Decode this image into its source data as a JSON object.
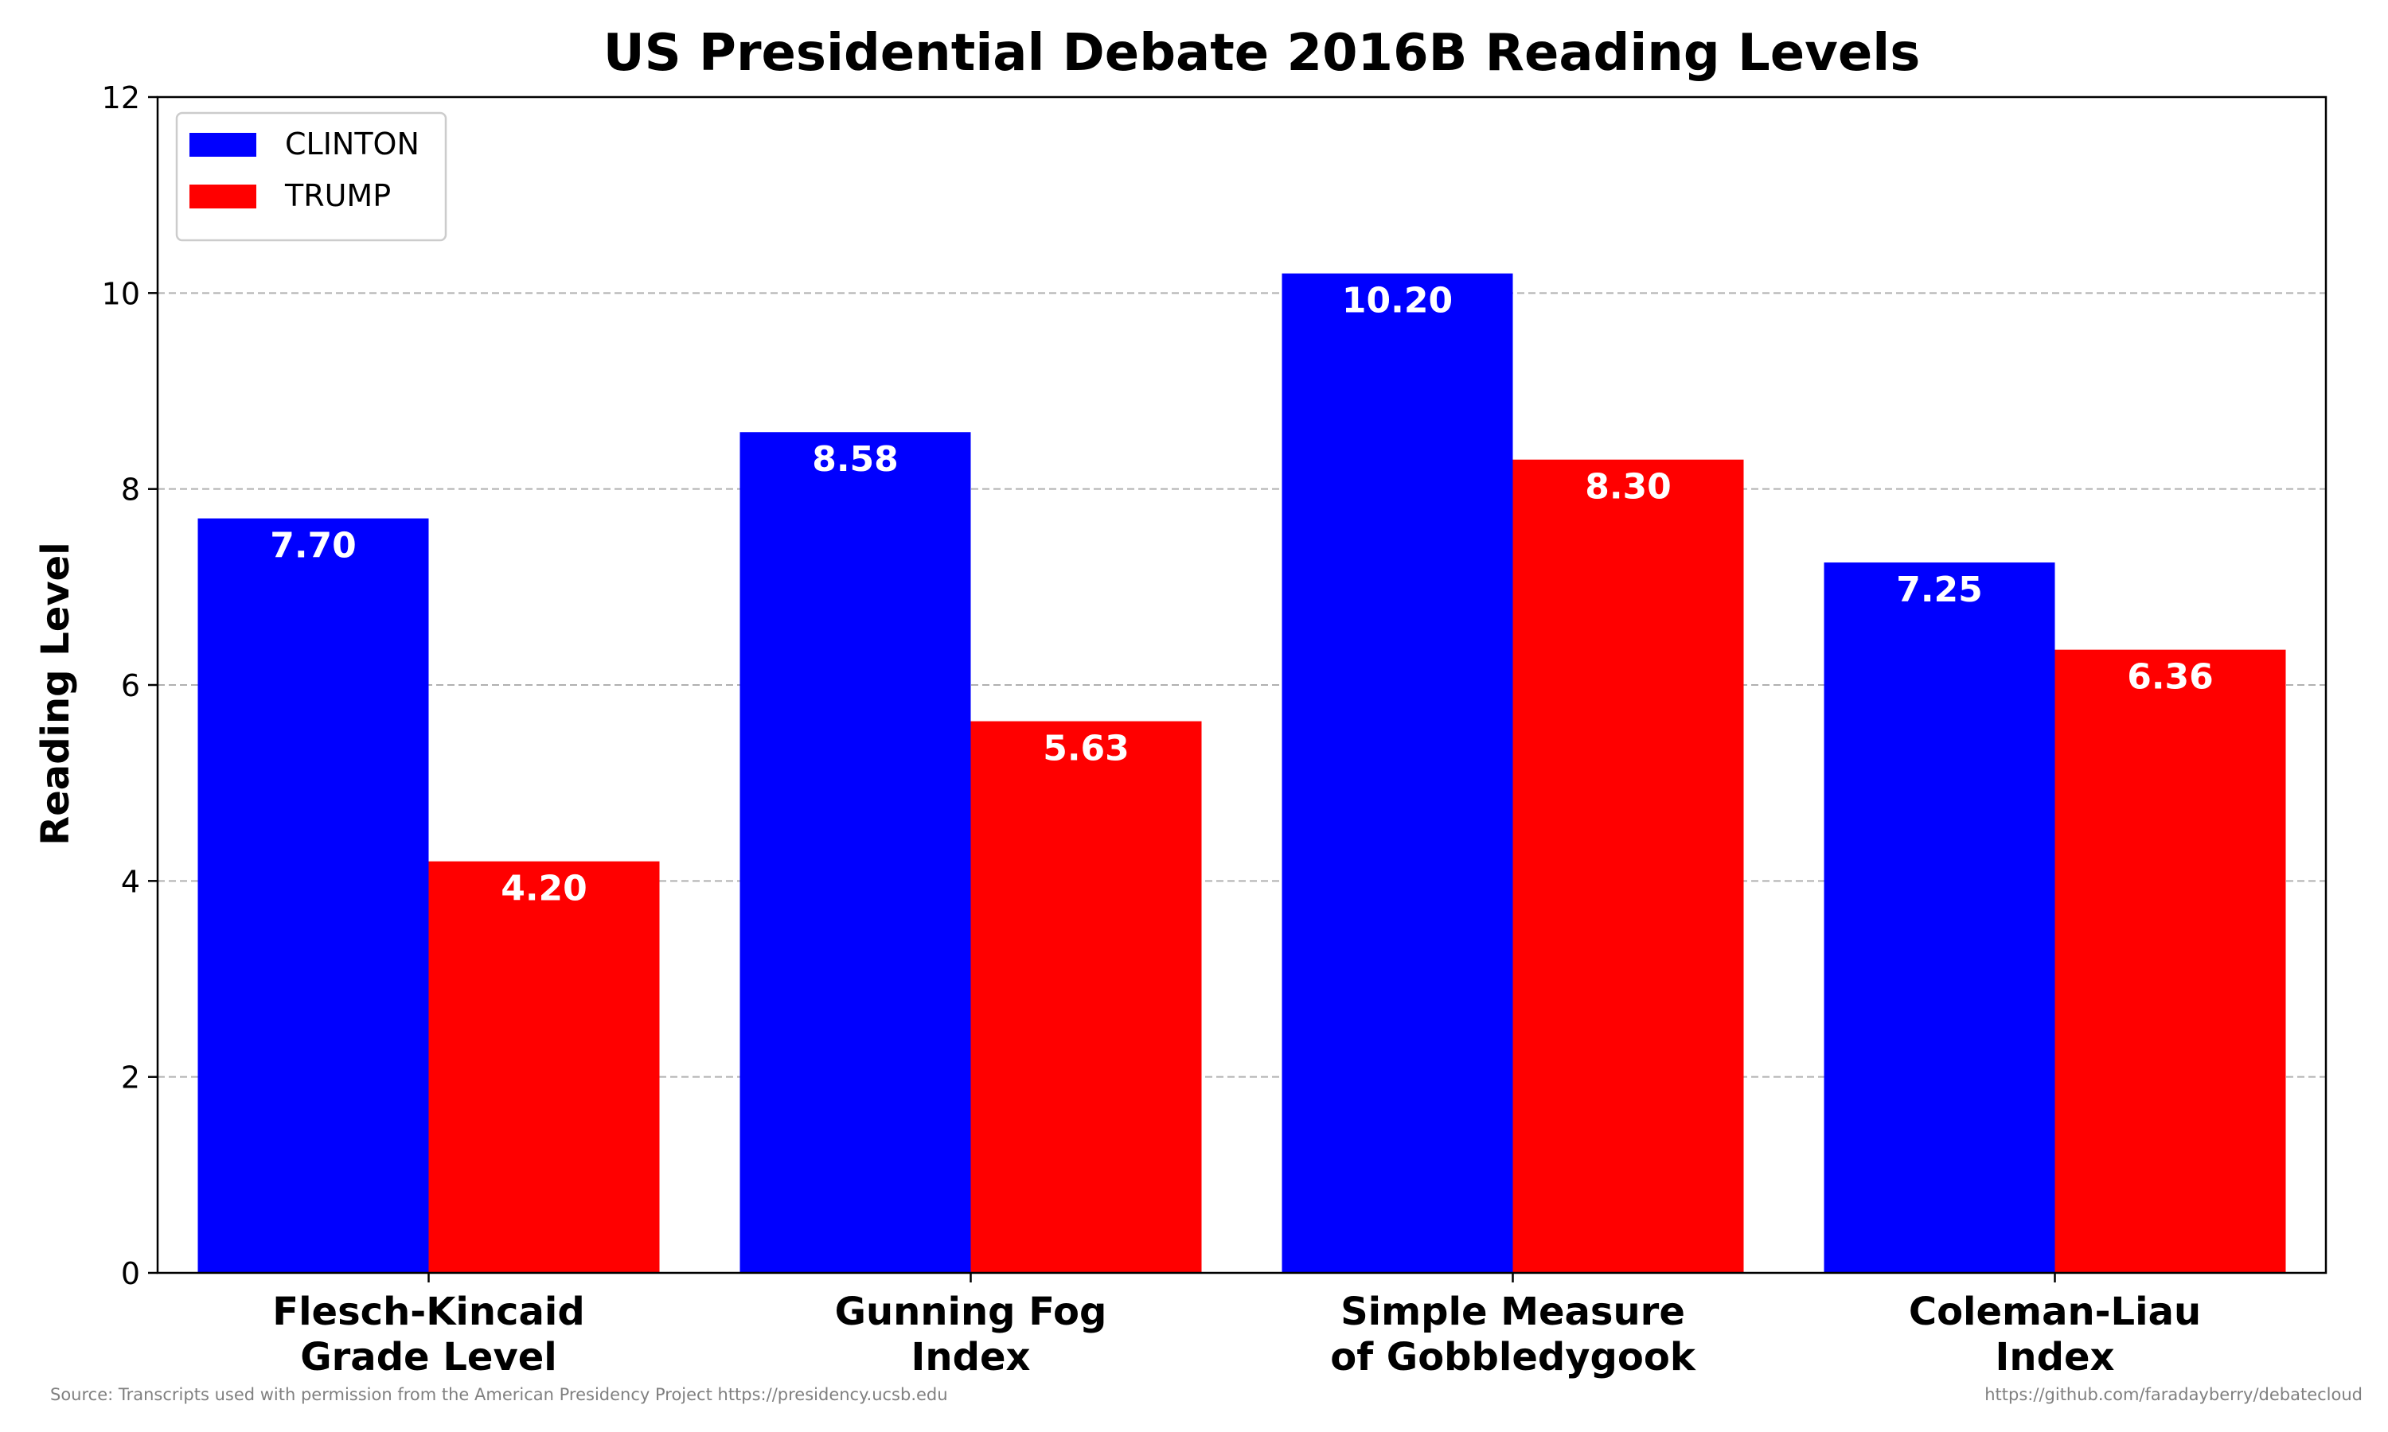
{
  "chart_data": {
    "type": "bar",
    "title": "US Presidential Debate 2016B Reading Levels",
    "xlabel": "",
    "ylabel": "Reading Level",
    "categories": [
      [
        "Flesch-Kincaid",
        "Grade Level"
      ],
      [
        "Gunning Fog",
        "Index"
      ],
      [
        "Simple Measure",
        "of Gobbledygook"
      ],
      [
        "Coleman-Liau",
        "Index"
      ]
    ],
    "series": [
      {
        "name": "CLINTON",
        "color": "#0000ff",
        "values": [
          7.7,
          8.58,
          10.2,
          7.25
        ],
        "labels": [
          "7.70",
          "8.58",
          "10.20",
          "7.25"
        ]
      },
      {
        "name": "TRUMP",
        "color": "#ff0000",
        "values": [
          4.2,
          5.63,
          8.3,
          6.36
        ],
        "labels": [
          "4.20",
          "5.63",
          "8.30",
          "6.36"
        ]
      }
    ],
    "ylim": [
      0,
      12
    ],
    "yticks": [
      0,
      2,
      4,
      6,
      8,
      10,
      12
    ],
    "grid": true,
    "legend": "top-left"
  },
  "footer": {
    "source": "Source: Transcripts used with permission from the American Presidency Project https://presidency.ucsb.edu",
    "url": "https://github.com/faradayberry/debatecloud"
  }
}
